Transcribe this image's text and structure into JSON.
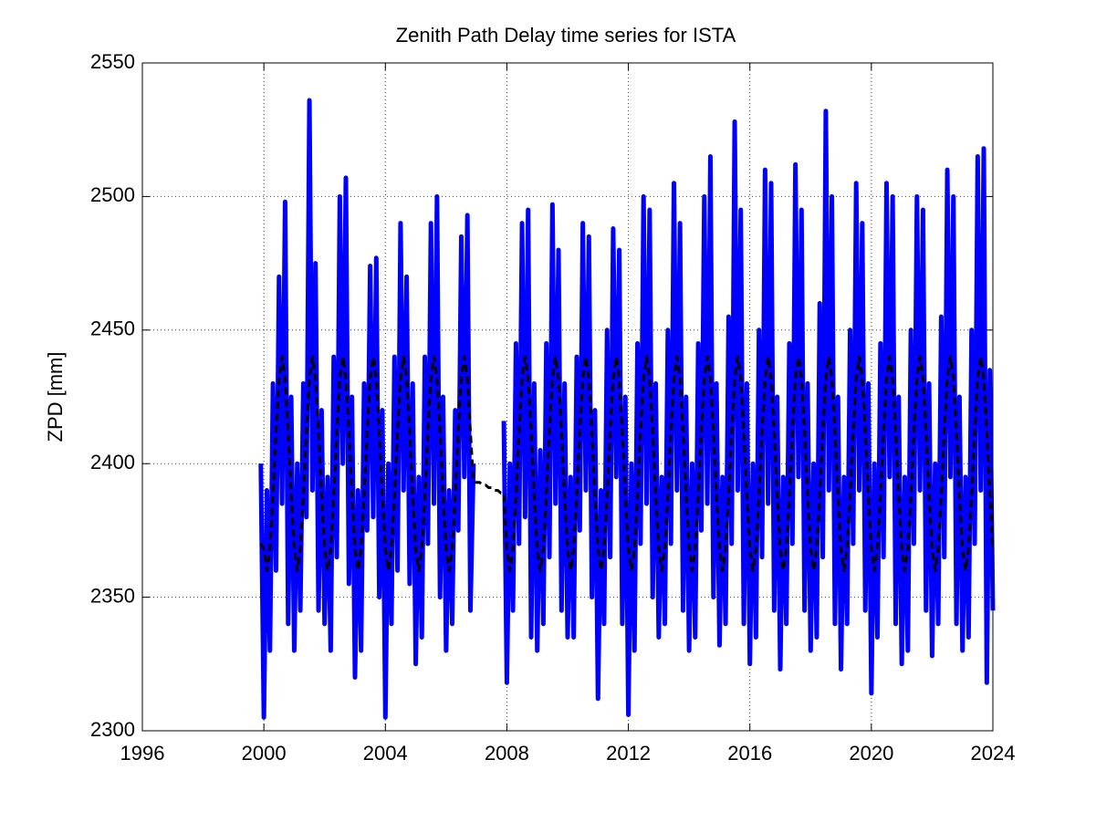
{
  "chart_data": {
    "type": "line",
    "title": "Zenith Path Delay time series for ISTA",
    "ylabel": "ZPD [mm]",
    "xlim": [
      1996,
      2024
    ],
    "xticks": [
      1996,
      2000,
      2004,
      2008,
      2012,
      2016,
      2020,
      2024
    ],
    "ylim": [
      2300,
      2550
    ],
    "yticks": [
      2300,
      2350,
      2400,
      2450,
      2500,
      2550
    ],
    "grid": true,
    "x": [
      1999.9,
      2000.0,
      2000.1,
      2000.2,
      2000.3,
      2000.4,
      2000.5,
      2000.6,
      2000.7,
      2000.8,
      2000.9,
      2001.0,
      2001.1,
      2001.2,
      2001.3,
      2001.4,
      2001.5,
      2001.6,
      2001.7,
      2001.8,
      2001.9,
      2002.0,
      2002.1,
      2002.2,
      2002.3,
      2002.4,
      2002.5,
      2002.6,
      2002.7,
      2002.8,
      2002.9,
      2003.0,
      2003.1,
      2003.2,
      2003.3,
      2003.4,
      2003.5,
      2003.6,
      2003.7,
      2003.8,
      2003.9,
      2004.0,
      2004.1,
      2004.2,
      2004.3,
      2004.4,
      2004.5,
      2004.6,
      2004.7,
      2004.8,
      2004.9,
      2005.0,
      2005.1,
      2005.2,
      2005.3,
      2005.4,
      2005.5,
      2005.6,
      2005.7,
      2005.8,
      2005.9,
      2006.0,
      2006.1,
      2006.2,
      2006.3,
      2006.4,
      2006.5,
      2006.6,
      2006.7,
      2006.8,
      2006.9,
      2007.0,
      2007.1,
      2007.2,
      2007.3,
      2007.4,
      2007.5,
      2007.6,
      2007.7,
      2007.8,
      2007.9,
      2008.0,
      2008.1,
      2008.2,
      2008.3,
      2008.4,
      2008.5,
      2008.6,
      2008.7,
      2008.8,
      2008.9,
      2009.0,
      2009.1,
      2009.2,
      2009.3,
      2009.4,
      2009.5,
      2009.6,
      2009.7,
      2009.8,
      2009.9,
      2010.0,
      2010.1,
      2010.2,
      2010.3,
      2010.4,
      2010.5,
      2010.6,
      2010.7,
      2010.8,
      2010.9,
      2011.0,
      2011.1,
      2011.2,
      2011.3,
      2011.4,
      2011.5,
      2011.6,
      2011.7,
      2011.8,
      2011.9,
      2012.0,
      2012.1,
      2012.2,
      2012.3,
      2012.4,
      2012.5,
      2012.6,
      2012.7,
      2012.8,
      2012.9,
      2013.0,
      2013.1,
      2013.2,
      2013.3,
      2013.4,
      2013.5,
      2013.6,
      2013.7,
      2013.8,
      2013.9,
      2014.0,
      2014.1,
      2014.2,
      2014.3,
      2014.4,
      2014.5,
      2014.6,
      2014.7,
      2014.8,
      2014.9,
      2015.0,
      2015.1,
      2015.2,
      2015.3,
      2015.4,
      2015.5,
      2015.6,
      2015.7,
      2015.8,
      2015.9,
      2016.0,
      2016.1,
      2016.2,
      2016.3,
      2016.4,
      2016.5,
      2016.6,
      2016.7,
      2016.8,
      2016.9,
      2017.0,
      2017.1,
      2017.2,
      2017.3,
      2017.4,
      2017.5,
      2017.6,
      2017.7,
      2017.8,
      2017.9,
      2018.0,
      2018.1,
      2018.2,
      2018.3,
      2018.4,
      2018.5,
      2018.6,
      2018.7,
      2018.8,
      2018.9,
      2019.0,
      2019.1,
      2019.2,
      2019.3,
      2019.4,
      2019.5,
      2019.6,
      2019.7,
      2019.8,
      2019.9,
      2020.0,
      2020.1,
      2020.2,
      2020.3,
      2020.4,
      2020.5,
      2020.6,
      2020.7,
      2020.8,
      2020.9,
      2021.0,
      2021.1,
      2021.2,
      2021.3,
      2021.4,
      2021.5,
      2021.6,
      2021.7,
      2021.8,
      2021.9,
      2022.0,
      2022.1,
      2022.2,
      2022.3,
      2022.4,
      2022.5,
      2022.6,
      2022.7,
      2022.8,
      2022.9,
      2023.0,
      2023.1,
      2023.2,
      2023.3,
      2023.4,
      2023.5,
      2023.6,
      2023.7,
      2023.8,
      2023.9,
      2024.0
    ],
    "series": [
      {
        "color": "#0000ff",
        "width": 5,
        "dash": false,
        "values": [
          2400,
          2305,
          2390,
          2330,
          2430,
          2360,
          2470,
          2385,
          2498,
          2340,
          2425,
          2330,
          2400,
          2345,
          2430,
          2380,
          2536,
          2390,
          2475,
          2345,
          2420,
          2340,
          2395,
          2330,
          2440,
          2365,
          2500,
          2400,
          2507,
          2355,
          2425,
          2320,
          2390,
          2330,
          2430,
          2375,
          2474,
          2380,
          2477,
          2350,
          2420,
          2305,
          2400,
          2340,
          2440,
          2360,
          2490,
          2390,
          2470,
          2355,
          2430,
          2325,
          2395,
          2335,
          2440,
          2370,
          2490,
          2385,
          2500,
          2350,
          2425,
          2330,
          2390,
          2340,
          2420,
          2375,
          2485,
          2395,
          2493,
          2345,
          2400,
          null,
          null,
          null,
          null,
          null,
          null,
          null,
          null,
          null,
          2416,
          2318,
          2400,
          2345,
          2445,
          2370,
          2490,
          2380,
          2495,
          2335,
          2430,
          2330,
          2405,
          2340,
          2445,
          2365,
          2497,
          2385,
          2480,
          2345,
          2430,
          2335,
          2395,
          2335,
          2440,
          2375,
          2490,
          2390,
          2485,
          2350,
          2420,
          2312,
          2390,
          2340,
          2450,
          2365,
          2488,
          2395,
          2480,
          2340,
          2425,
          2306,
          2400,
          2330,
          2445,
          2370,
          2500,
          2385,
          2495,
          2350,
          2430,
          2335,
          2395,
          2340,
          2450,
          2370,
          2505,
          2390,
          2490,
          2345,
          2425,
          2330,
          2400,
          2335,
          2445,
          2375,
          2500,
          2385,
          2515,
          2350,
          2430,
          2332,
          2395,
          2340,
          2455,
          2370,
          2528,
          2390,
          2495,
          2340,
          2430,
          2325,
          2400,
          2335,
          2450,
          2365,
          2510,
          2385,
          2505,
          2345,
          2425,
          2323,
          2395,
          2340,
          2445,
          2370,
          2512,
          2395,
          2495,
          2345,
          2430,
          2330,
          2400,
          2335,
          2460,
          2365,
          2532,
          2390,
          2500,
          2340,
          2425,
          2323,
          2395,
          2340,
          2450,
          2370,
          2505,
          2390,
          2490,
          2345,
          2430,
          2314,
          2400,
          2335,
          2445,
          2365,
          2505,
          2395,
          2500,
          2340,
          2425,
          2325,
          2395,
          2330,
          2450,
          2370,
          2500,
          2390,
          2495,
          2345,
          2430,
          2328,
          2400,
          2340,
          2455,
          2365,
          2510,
          2395,
          2500,
          2340,
          2425,
          2330,
          2395,
          2335,
          2450,
          2370,
          2515,
          2390,
          2518,
          2318,
          2435,
          2345
        ]
      },
      {
        "color": "#000000",
        "width": 3,
        "dash": true,
        "values": [
          2370,
          2368,
          2360,
          2368,
          2388,
          2412,
          2432,
          2440,
          2432,
          2412,
          2388,
          2368,
          2360,
          2368,
          2388,
          2412,
          2432,
          2440,
          2432,
          2412,
          2388,
          2368,
          2360,
          2368,
          2388,
          2412,
          2432,
          2440,
          2432,
          2412,
          2388,
          2368,
          2360,
          2368,
          2388,
          2412,
          2432,
          2440,
          2432,
          2412,
          2388,
          2368,
          2360,
          2368,
          2388,
          2412,
          2432,
          2440,
          2432,
          2412,
          2388,
          2368,
          2360,
          2368,
          2388,
          2412,
          2432,
          2440,
          2432,
          2412,
          2388,
          2368,
          2360,
          2368,
          2388,
          2412,
          2432,
          2440,
          2432,
          2412,
          2393,
          2393,
          2393,
          2392,
          2392,
          2391,
          2391,
          2390,
          2390,
          2389,
          2389,
          2368,
          2360,
          2368,
          2388,
          2412,
          2432,
          2440,
          2432,
          2412,
          2388,
          2368,
          2360,
          2368,
          2388,
          2412,
          2432,
          2440,
          2432,
          2412,
          2388,
          2368,
          2360,
          2368,
          2388,
          2412,
          2432,
          2440,
          2432,
          2412,
          2388,
          2368,
          2360,
          2368,
          2388,
          2412,
          2432,
          2440,
          2432,
          2412,
          2388,
          2368,
          2360,
          2368,
          2388,
          2412,
          2432,
          2440,
          2432,
          2412,
          2388,
          2368,
          2360,
          2368,
          2388,
          2412,
          2432,
          2440,
          2432,
          2412,
          2388,
          2368,
          2360,
          2368,
          2388,
          2412,
          2432,
          2440,
          2432,
          2412,
          2388,
          2368,
          2360,
          2368,
          2388,
          2412,
          2432,
          2440,
          2432,
          2412,
          2388,
          2368,
          2360,
          2368,
          2388,
          2412,
          2432,
          2440,
          2432,
          2412,
          2388,
          2368,
          2360,
          2368,
          2388,
          2412,
          2432,
          2440,
          2432,
          2412,
          2388,
          2368,
          2360,
          2368,
          2388,
          2412,
          2432,
          2440,
          2432,
          2412,
          2388,
          2368,
          2360,
          2368,
          2388,
          2412,
          2432,
          2440,
          2432,
          2412,
          2388,
          2368,
          2360,
          2368,
          2388,
          2412,
          2432,
          2440,
          2432,
          2412,
          2388,
          2368,
          2360,
          2368,
          2388,
          2412,
          2432,
          2440,
          2432,
          2412,
          2388,
          2368,
          2360,
          2368,
          2388,
          2412,
          2432,
          2440,
          2432,
          2412,
          2388,
          2368,
          2360,
          2368,
          2388,
          2412,
          2432,
          2440,
          2432,
          2412,
          2388,
          2368
        ]
      }
    ]
  }
}
